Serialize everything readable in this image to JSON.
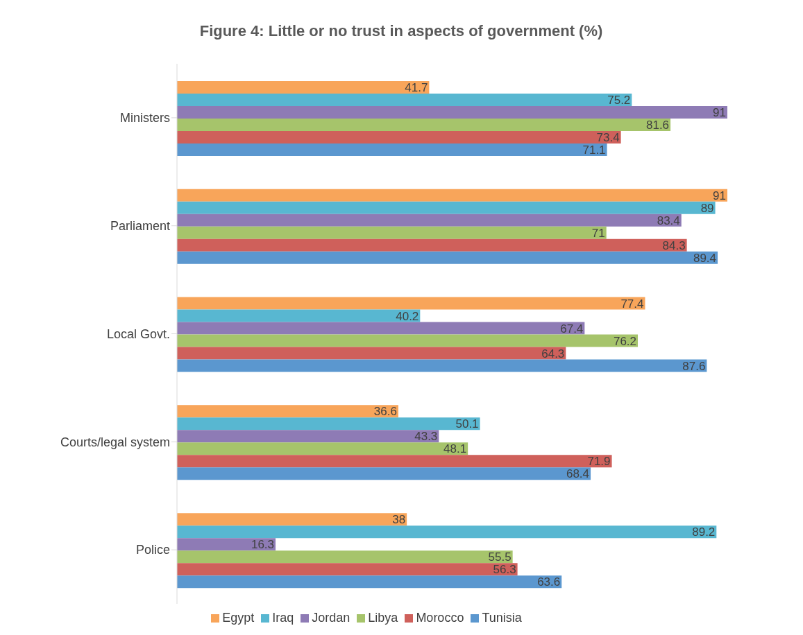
{
  "chart_data": {
    "type": "bar",
    "orientation": "horizontal",
    "title": "Figure 4: Little or no trust in aspects of government (%)",
    "categories": [
      "Ministers",
      "Parliament",
      "Local Govt.",
      "Courts/legal system",
      "Police"
    ],
    "series": [
      {
        "name": "Egypt",
        "color": "#f8a55a",
        "values": [
          41.7,
          91,
          77.4,
          36.6,
          38
        ]
      },
      {
        "name": "Iraq",
        "color": "#58b7d1",
        "values": [
          75.2,
          89,
          40.2,
          50.1,
          89.2
        ]
      },
      {
        "name": "Jordan",
        "color": "#8e7bb5",
        "values": [
          91,
          83.4,
          67.4,
          43.3,
          16.3
        ]
      },
      {
        "name": "Libya",
        "color": "#a6c46b",
        "values": [
          81.6,
          71,
          76.2,
          48.1,
          55.5
        ]
      },
      {
        "name": "Morocco",
        "color": "#cf605b",
        "values": [
          73.4,
          84.3,
          64.3,
          71.9,
          56.3
        ]
      },
      {
        "name": "Tunisia",
        "color": "#5b97cf",
        "values": [
          71.1,
          89.4,
          87.6,
          68.4,
          63.6
        ]
      }
    ],
    "data_labels": true,
    "grid": false,
    "legend": "bottom"
  }
}
